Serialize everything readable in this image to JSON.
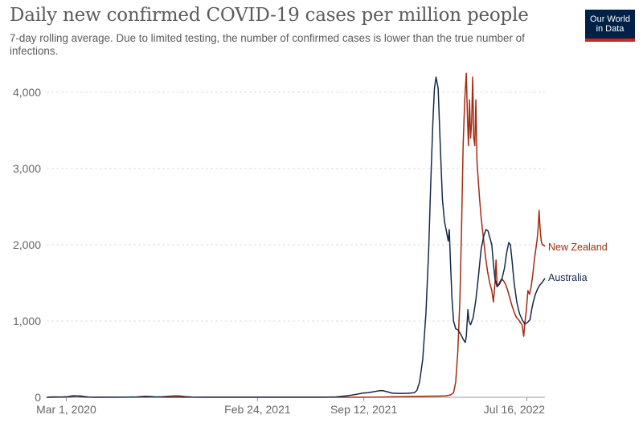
{
  "header": {
    "title": "Daily new confirmed COVID-19 cases per million people",
    "subtitle": "7-day rolling average. Due to limited testing, the number of confirmed cases is lower than the true number of infections."
  },
  "logo": {
    "line1": "Our World",
    "line2": "in Data"
  },
  "colors": {
    "new_zealand": "#a52a11",
    "australia": "#15294b",
    "grid": "#dddddd",
    "axis": "#666666"
  },
  "chart_data": {
    "type": "line",
    "title": "Daily new confirmed COVID-19 cases per million people",
    "xlabel": "",
    "ylabel": "",
    "xlim": [
      "2020-01-24",
      "2022-07-16"
    ],
    "ylim": [
      0,
      4000
    ],
    "y_ticks": [
      {
        "value": 0,
        "label": "0"
      },
      {
        "value": 1000,
        "label": "1,000"
      },
      {
        "value": 2000,
        "label": "2,000"
      },
      {
        "value": 3000,
        "label": "3,000"
      },
      {
        "value": 4000,
        "label": "4,000"
      }
    ],
    "x_ticks": [
      {
        "day": 37,
        "label": "Mar 1, 2020"
      },
      {
        "day": 397,
        "label": "Feb 24, 2021"
      },
      {
        "day": 597,
        "label": "Sep 12, 2021"
      },
      {
        "day": 904,
        "label": "Jul 16, 2022"
      }
    ],
    "grid": true,
    "series": [
      {
        "name": "Australia",
        "label": "Australia",
        "color": "#15294b",
        "points": [
          [
            0,
            0
          ],
          [
            10,
            5
          ],
          [
            28,
            4
          ],
          [
            40,
            8
          ],
          [
            48,
            18
          ],
          [
            55,
            20
          ],
          [
            62,
            12
          ],
          [
            70,
            5
          ],
          [
            85,
            1
          ],
          [
            150,
            2
          ],
          [
            170,
            5
          ],
          [
            185,
            13
          ],
          [
            195,
            10
          ],
          [
            205,
            5
          ],
          [
            220,
            2
          ],
          [
            300,
            1
          ],
          [
            420,
            1
          ],
          [
            520,
            1
          ],
          [
            545,
            5
          ],
          [
            565,
            20
          ],
          [
            580,
            35
          ],
          [
            595,
            55
          ],
          [
            605,
            60
          ],
          [
            615,
            72
          ],
          [
            625,
            85
          ],
          [
            632,
            88
          ],
          [
            640,
            75
          ],
          [
            650,
            55
          ],
          [
            665,
            50
          ],
          [
            680,
            52
          ],
          [
            692,
            60
          ],
          [
            697,
            90
          ],
          [
            702,
            200
          ],
          [
            708,
            500
          ],
          [
            714,
            1100
          ],
          [
            719,
            1900
          ],
          [
            723,
            2800
          ],
          [
            727,
            3600
          ],
          [
            730,
            4050
          ],
          [
            733,
            4200
          ],
          [
            737,
            4050
          ],
          [
            741,
            3300
          ],
          [
            745,
            2600
          ],
          [
            749,
            2300
          ],
          [
            752,
            2200
          ],
          [
            756,
            2050
          ],
          [
            758,
            2200
          ],
          [
            760,
            1800
          ],
          [
            763,
            1300
          ],
          [
            766,
            1000
          ],
          [
            770,
            900
          ],
          [
            775,
            880
          ],
          [
            780,
            820
          ],
          [
            785,
            750
          ],
          [
            788,
            720
          ],
          [
            790,
            800
          ],
          [
            793,
            1150
          ],
          [
            795,
            1000
          ],
          [
            798,
            950
          ],
          [
            803,
            1050
          ],
          [
            808,
            1280
          ],
          [
            813,
            1600
          ],
          [
            818,
            1950
          ],
          [
            823,
            2120
          ],
          [
            827,
            2200
          ],
          [
            831,
            2180
          ],
          [
            834,
            2100
          ],
          [
            838,
            2000
          ],
          [
            841,
            1750
          ],
          [
            844,
            1550
          ],
          [
            848,
            1450
          ],
          [
            852,
            1480
          ],
          [
            857,
            1550
          ],
          [
            862,
            1700
          ],
          [
            866,
            1900
          ],
          [
            870,
            2030
          ],
          [
            873,
            2000
          ],
          [
            876,
            1800
          ],
          [
            880,
            1500
          ],
          [
            885,
            1250
          ],
          [
            890,
            1100
          ],
          [
            895,
            1020
          ],
          [
            900,
            960
          ],
          [
            905,
            980
          ],
          [
            910,
            1020
          ],
          [
            913,
            1150
          ],
          [
            916,
            1250
          ],
          [
            920,
            1350
          ],
          [
            924,
            1420
          ],
          [
            928,
            1470
          ],
          [
            932,
            1500
          ],
          [
            935,
            1530
          ],
          [
            938,
            1560
          ]
        ]
      },
      {
        "name": "New Zealand",
        "label": "New Zealand",
        "color": "#a52a11",
        "points": [
          [
            0,
            0
          ],
          [
            35,
            2
          ],
          [
            45,
            8
          ],
          [
            55,
            15
          ],
          [
            62,
            20
          ],
          [
            70,
            12
          ],
          [
            80,
            3
          ],
          [
            100,
            1
          ],
          [
            200,
            2
          ],
          [
            215,
            6
          ],
          [
            230,
            14
          ],
          [
            242,
            20
          ],
          [
            250,
            18
          ],
          [
            260,
            10
          ],
          [
            275,
            3
          ],
          [
            300,
            1
          ],
          [
            600,
            1
          ],
          [
            620,
            2
          ],
          [
            645,
            5
          ],
          [
            665,
            8
          ],
          [
            680,
            10
          ],
          [
            695,
            12
          ],
          [
            715,
            14
          ],
          [
            735,
            16
          ],
          [
            750,
            18
          ],
          [
            760,
            30
          ],
          [
            766,
            60
          ],
          [
            770,
            200
          ],
          [
            774,
            600
          ],
          [
            778,
            1300
          ],
          [
            781,
            2200
          ],
          [
            784,
            3300
          ],
          [
            787,
            3900
          ],
          [
            790,
            4250
          ],
          [
            792,
            3700
          ],
          [
            794,
            3300
          ],
          [
            796,
            3900
          ],
          [
            798,
            3400
          ],
          [
            800,
            3600
          ],
          [
            802,
            4200
          ],
          [
            804,
            3400
          ],
          [
            806,
            3300
          ],
          [
            808,
            3900
          ],
          [
            810,
            3100
          ],
          [
            812,
            2900
          ],
          [
            815,
            2600
          ],
          [
            818,
            2350
          ],
          [
            822,
            2100
          ],
          [
            826,
            1850
          ],
          [
            830,
            1650
          ],
          [
            834,
            1500
          ],
          [
            838,
            1400
          ],
          [
            841,
            1250
          ],
          [
            844,
            1500
          ],
          [
            846,
            1800
          ],
          [
            848,
            1450
          ],
          [
            852,
            1500
          ],
          [
            856,
            1550
          ],
          [
            860,
            1530
          ],
          [
            864,
            1480
          ],
          [
            868,
            1400
          ],
          [
            872,
            1300
          ],
          [
            876,
            1200
          ],
          [
            880,
            1120
          ],
          [
            884,
            1050
          ],
          [
            888,
            1020
          ],
          [
            892,
            980
          ],
          [
            895,
            950
          ],
          [
            898,
            800
          ],
          [
            900,
            960
          ],
          [
            903,
            1150
          ],
          [
            906,
            1400
          ],
          [
            909,
            1350
          ],
          [
            912,
            1450
          ],
          [
            915,
            1600
          ],
          [
            918,
            1800
          ],
          [
            921,
            1950
          ],
          [
            923,
            2050
          ],
          [
            925,
            2200
          ],
          [
            927,
            2450
          ],
          [
            929,
            2200
          ],
          [
            931,
            2050
          ],
          [
            933,
            2000
          ],
          [
            935,
            2000
          ],
          [
            938,
            1980
          ]
        ]
      }
    ]
  }
}
